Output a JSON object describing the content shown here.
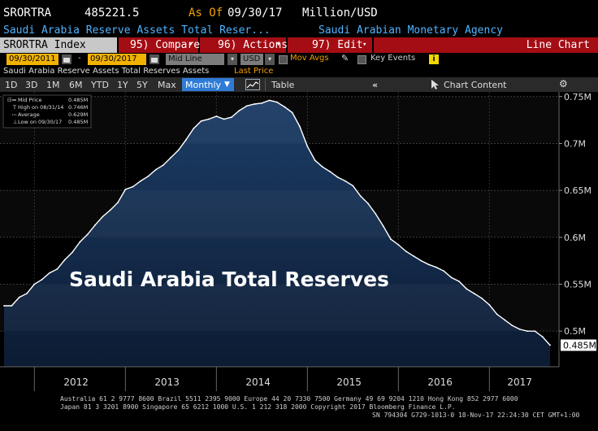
{
  "header": {
    "ticker": "SRORTRA",
    "last_value": "485221.5",
    "as_of_label": "As Of",
    "as_of_date": "09/30/17",
    "units": "Million/USD",
    "description": "Saudi Arabia Reserve Assets Total Reser...",
    "source": "Saudi Arabian Monetary Agency"
  },
  "toolbar": {
    "index_label": "SRORTRA Index",
    "compare": "95) Compare",
    "actions": "96) Actions",
    "edit": "97) Edit",
    "chart_type": "Line Chart"
  },
  "controls": {
    "start_date": "09/30/2011",
    "end_date": "09/30/2017",
    "price_field": "Mid Line",
    "currency": "USD",
    "mov_avgs": "Mov Avgs",
    "key_events": "Key Events",
    "info_icon_text": "i"
  },
  "series_bar": {
    "series_name": "Saudi Arabia Reserve Assets Total Reserves Assets",
    "price_type": "Last Price"
  },
  "timeframes": [
    "1D",
    "3D",
    "1M",
    "6M",
    "YTD",
    "1Y",
    "5Y",
    "Max"
  ],
  "period": "Monthly",
  "table_label": "Table",
  "chart_content_label": "Chart Content",
  "legend": [
    {
      "label": "Mid Price",
      "value": "0.485M"
    },
    {
      "label": "High on 08/31/14",
      "value": "0.746M"
    },
    {
      "label": "Average",
      "value": "0.629M"
    },
    {
      "label": "Low on 09/30/17",
      "value": "0.485M"
    }
  ],
  "overlay_title": "Saudi Arabia Total Reserves",
  "footer": {
    "line1": "Australia 61 2 9777 8600 Brazil 5511 2395 9000 Europe 44 20 7330 7500 Germany 49 69 9204 1210 Hong Kong 852 2977 6000",
    "line2": "Japan 81 3 3201 8900          Singapore 65 6212 1000       U.S. 1 212 318 2000             Copyright 2017 Bloomberg Finance L.P.",
    "line3": "SN 794304 G729-1013-0 18-Nov-17 22:24:30 CET  GMT+1:00"
  },
  "colors": {
    "accent_orange": "#f2a000",
    "header_blue": "#4fb3ff",
    "toolbar_red": "#a40d13",
    "selected_blue": "#2f7bd6",
    "area_fill_top": "#1c3d66",
    "area_fill_bottom": "#0c1b33"
  },
  "chart_data": {
    "type": "area",
    "x": [
      "2011-09",
      "2011-10",
      "2011-11",
      "2011-12",
      "2012-01",
      "2012-02",
      "2012-03",
      "2012-04",
      "2012-05",
      "2012-06",
      "2012-07",
      "2012-08",
      "2012-09",
      "2012-10",
      "2012-11",
      "2012-12",
      "2013-01",
      "2013-02",
      "2013-03",
      "2013-04",
      "2013-05",
      "2013-06",
      "2013-07",
      "2013-08",
      "2013-09",
      "2013-10",
      "2013-11",
      "2013-12",
      "2014-01",
      "2014-02",
      "2014-03",
      "2014-04",
      "2014-05",
      "2014-06",
      "2014-07",
      "2014-08",
      "2014-09",
      "2014-10",
      "2014-11",
      "2014-12",
      "2015-01",
      "2015-02",
      "2015-03",
      "2015-04",
      "2015-05",
      "2015-06",
      "2015-07",
      "2015-08",
      "2015-09",
      "2015-10",
      "2015-11",
      "2015-12",
      "2016-01",
      "2016-02",
      "2016-03",
      "2016-04",
      "2016-05",
      "2016-06",
      "2016-07",
      "2016-08",
      "2016-09",
      "2016-10",
      "2016-11",
      "2016-12",
      "2017-01",
      "2017-02",
      "2017-03",
      "2017-04",
      "2017-05",
      "2017-06",
      "2017-07",
      "2017-08",
      "2017-09"
    ],
    "values": [
      0.527,
      0.527,
      0.536,
      0.54,
      0.55,
      0.555,
      0.562,
      0.566,
      0.576,
      0.584,
      0.595,
      0.603,
      0.613,
      0.622,
      0.629,
      0.637,
      0.651,
      0.654,
      0.66,
      0.665,
      0.672,
      0.677,
      0.685,
      0.693,
      0.704,
      0.716,
      0.724,
      0.726,
      0.729,
      0.726,
      0.728,
      0.735,
      0.74,
      0.742,
      0.743,
      0.746,
      0.744,
      0.739,
      0.733,
      0.718,
      0.697,
      0.682,
      0.675,
      0.67,
      0.664,
      0.66,
      0.655,
      0.644,
      0.636,
      0.625,
      0.612,
      0.598,
      0.592,
      0.585,
      0.58,
      0.575,
      0.571,
      0.568,
      0.564,
      0.557,
      0.553,
      0.545,
      0.54,
      0.535,
      0.528,
      0.518,
      0.512,
      0.506,
      0.502,
      0.5,
      0.5,
      0.494,
      0.485
    ],
    "y_ticks": [
      "0.5M",
      "0.55M",
      "0.6M",
      "0.65M",
      "0.7M",
      "0.75M"
    ],
    "y_tick_values": [
      0.5,
      0.55,
      0.6,
      0.65,
      0.7,
      0.75
    ],
    "ylim": [
      0.462,
      0.755
    ],
    "x_ticks": [
      "2012",
      "2013",
      "2014",
      "2015",
      "2016",
      "2017"
    ],
    "last_label": "0.485M",
    "grid": true,
    "legend_placement": "top-left"
  }
}
